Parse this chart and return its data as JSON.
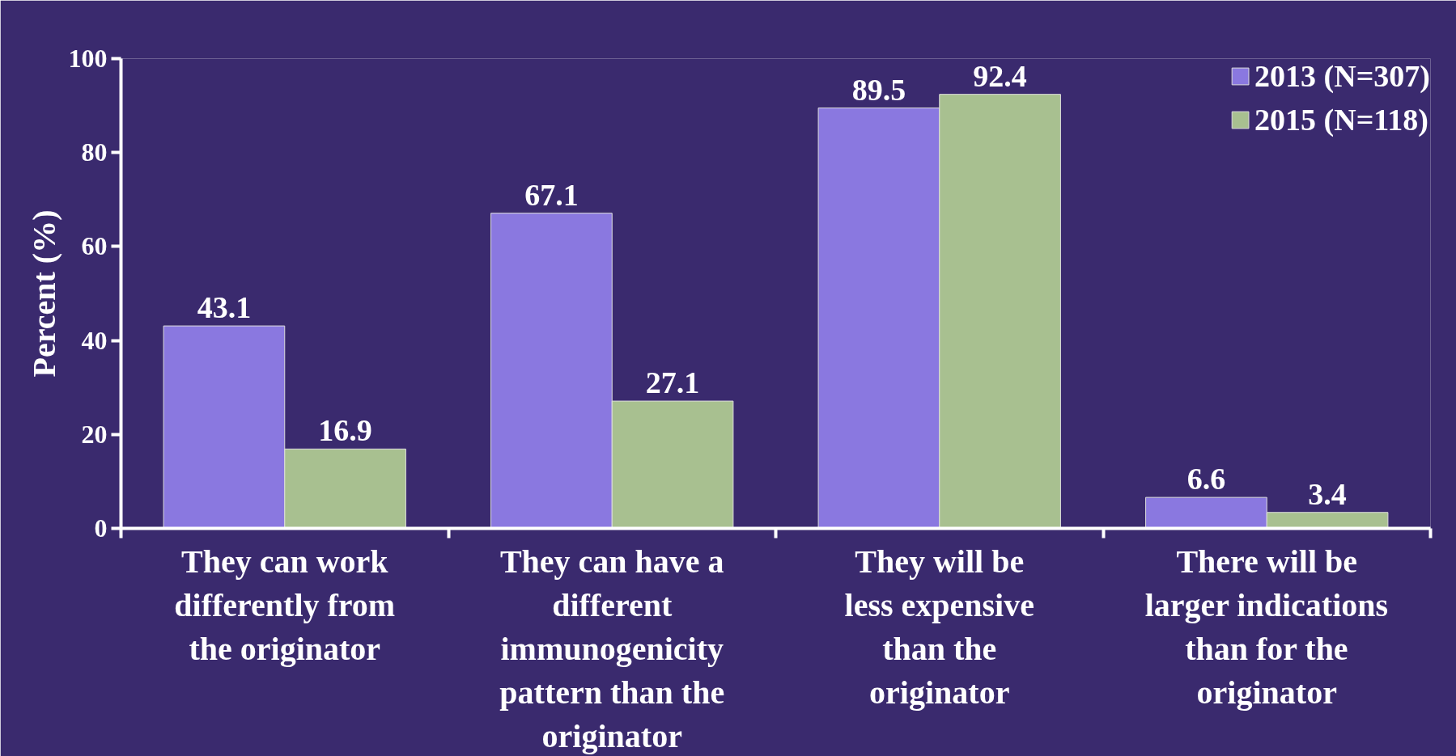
{
  "chart_data": {
    "type": "bar",
    "categories": [
      "They can work\ndifferently from\nthe originator",
      "They can have a\ndifferent\nimmunogenicity\npattern than the\noriginator",
      "They will be\nless expensive\nthan the\noriginator",
      "There will be\nlarger indications\nthan for the\noriginator"
    ],
    "series": [
      {
        "name": "2013 (N=307)",
        "color": "#8a78e0",
        "values": [
          43.1,
          67.1,
          89.5,
          6.6
        ]
      },
      {
        "name": "2015 (N=118)",
        "color": "#a8c090",
        "values": [
          16.9,
          27.1,
          92.4,
          3.4
        ]
      }
    ],
    "ylabel": "Percent (%)",
    "ylim": [
      0,
      100
    ],
    "yticks": [
      0,
      20,
      40,
      60,
      80,
      100
    ],
    "data_labels": true,
    "grid": false,
    "legend": "top right"
  }
}
